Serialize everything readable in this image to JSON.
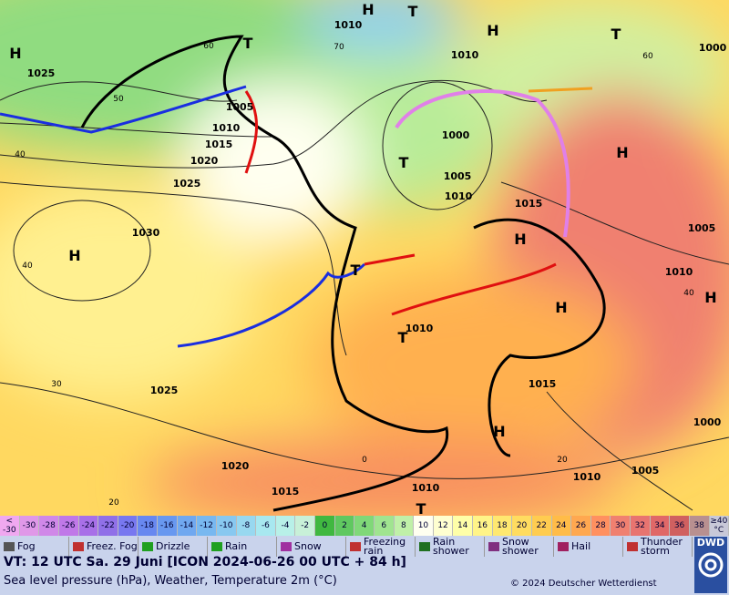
{
  "map": {
    "pressure_labels": [
      "1025",
      "1010",
      "1010",
      "1005",
      "1010",
      "1015",
      "1020",
      "1025",
      "1000",
      "1005",
      "1010",
      "1015",
      "1030",
      "1010",
      "1005",
      "1010",
      "1025",
      "1015",
      "1000",
      "1005",
      "1010",
      "1020",
      "1015",
      "1010",
      "1000"
    ],
    "centers": [
      "H",
      "H",
      "T",
      "H",
      "T",
      "T",
      "T",
      "H",
      "H",
      "H",
      "H",
      "T",
      "T",
      "H",
      "H",
      "T"
    ],
    "temperature_labels": [
      "60",
      "50",
      "40",
      "40",
      "30",
      "20",
      "0",
      "20",
      "40",
      "60",
      "70"
    ]
  },
  "scale": [
    {
      "label": "< -30",
      "color": "#f0a8f0"
    },
    {
      "label": "-30",
      "color": "#e098e8"
    },
    {
      "label": "-28",
      "color": "#d088e8"
    },
    {
      "label": "-26",
      "color": "#c078e8"
    },
    {
      "label": "-24",
      "color": "#a870e8"
    },
    {
      "label": "-22",
      "color": "#9070e8"
    },
    {
      "label": "-20",
      "color": "#7878f0"
    },
    {
      "label": "-18",
      "color": "#6888f0"
    },
    {
      "label": "-16",
      "color": "#6898f0"
    },
    {
      "label": "-14",
      "color": "#70a8f0"
    },
    {
      "label": "-12",
      "color": "#78b8f0"
    },
    {
      "label": "-10",
      "color": "#88c8f0"
    },
    {
      "label": "-8",
      "color": "#98d8f0"
    },
    {
      "label": "-6",
      "color": "#a8e8f0"
    },
    {
      "label": "-4",
      "color": "#b8f0e8"
    },
    {
      "label": "-2",
      "color": "#c8f0d8"
    },
    {
      "label": "0",
      "color": "#40b840"
    },
    {
      "label": "2",
      "color": "#60c860"
    },
    {
      "label": "4",
      "color": "#80d878"
    },
    {
      "label": "6",
      "color": "#a0e490"
    },
    {
      "label": "8",
      "color": "#c0f0a8"
    },
    {
      "label": "10",
      "color": "#fffff0"
    },
    {
      "label": "12",
      "color": "#ffffd0"
    },
    {
      "label": "14",
      "color": "#ffffa8"
    },
    {
      "label": "16",
      "color": "#fff488"
    },
    {
      "label": "18",
      "color": "#ffe870"
    },
    {
      "label": "20",
      "color": "#ffdc60"
    },
    {
      "label": "22",
      "color": "#ffcc50"
    },
    {
      "label": "24",
      "color": "#ffbc48"
    },
    {
      "label": "26",
      "color": "#ffa850"
    },
    {
      "label": "28",
      "color": "#ff9060"
    },
    {
      "label": "30",
      "color": "#f08070"
    },
    {
      "label": "32",
      "color": "#e87470"
    },
    {
      "label": "34",
      "color": "#e06868"
    },
    {
      "label": "36",
      "color": "#d06060"
    },
    {
      "label": "38",
      "color": "#b89090"
    },
    {
      "label": "≥40 °C",
      "color": "#c8c8d8"
    }
  ],
  "legend": [
    "Fog",
    "Freez. Fog",
    "Drizzle",
    "Rain",
    "Snow",
    "Freezing rain",
    "Rain shower",
    "Snow shower",
    "Hail",
    "Thunder storm"
  ],
  "footer": {
    "valid_time": "VT: 12 UTC Sa.  29 Juni [ICON 2024-06-26  00 UTC + 84 h]",
    "description": "Sea level pressure (hPa), Weather, Temperature 2m (°C)",
    "copyright": "© 2024 Deutscher Wetterdienst",
    "logo": "DWD"
  }
}
